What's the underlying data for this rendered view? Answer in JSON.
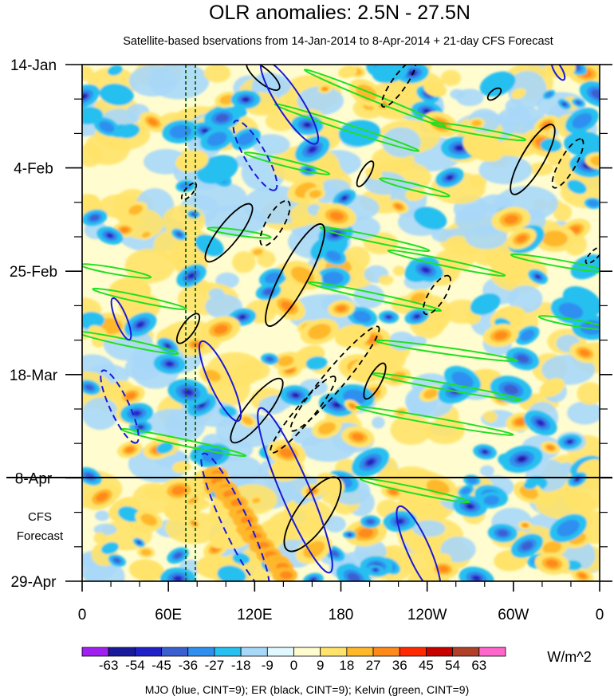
{
  "chart_data": {
    "type": "heatmap",
    "title": "OLR anomalies: 2.5N - 27.5N",
    "subtitle": "Satellite-based bservations from 14-Jan-2014 to 8-Apr-2014 + 21-day CFS Forecast",
    "x_ticks": [
      "0",
      "60E",
      "120E",
      "180",
      "120W",
      "60W",
      "0"
    ],
    "x_range_deg_east": [
      0,
      360
    ],
    "y_ticks": [
      "14-Jan",
      "4-Feb",
      "25-Feb",
      "18-Mar",
      "8-Apr",
      "29-Apr"
    ],
    "y_range_days": [
      0,
      105
    ],
    "observation_end_label": "8-Apr",
    "forecast_label_line1": "CFS",
    "forecast_label_line2": "Forecast",
    "colorbar": {
      "levels": [
        "-63",
        "-54",
        "-45",
        "-36",
        "-27",
        "-18",
        "-9",
        "0",
        "9",
        "18",
        "27",
        "36",
        "45",
        "54",
        "63"
      ],
      "colors": [
        "#a020f0",
        "#1a1a9c",
        "#2020c8",
        "#3a5fd0",
        "#2f8ff0",
        "#27c0f0",
        "#a8d8f8",
        "#e0f8ff",
        "#fffccf",
        "#ffe36a",
        "#ffb82a",
        "#ff8a1a",
        "#ff2a00",
        "#c80000",
        "#b0402a",
        "#ff66cc"
      ],
      "units": "W/m^2"
    },
    "contour_legend": "MJO (blue, CINT=9); ER (black, CINT=9); Kelvin (green, CINT=9)",
    "colors": {
      "mjo": "#1a1ad8",
      "er": "#000000",
      "kelvin": "#22e022",
      "reference_lines": "#1f6e1f"
    }
  }
}
